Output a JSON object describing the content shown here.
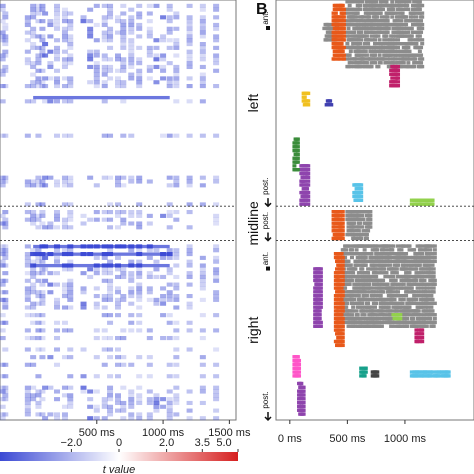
{
  "chart_data": [
    {
      "type": "heatmap",
      "panel": "A",
      "x_unit": "ms",
      "xlim": [
        -230,
        1550
      ],
      "x_ticks": [
        500,
        1000,
        1500
      ],
      "x_tick_labels": [
        "500 ms",
        "1000 ms",
        "1500 ms"
      ],
      "colorbar": {
        "label": "t value",
        "min": -5.0,
        "max": 5.0,
        "ticks": [
          -2.0,
          0,
          2.0,
          3.5,
          5.0
        ],
        "tick_labels": [
          "−2.0",
          "0",
          "2.0",
          "3.5",
          "5.0"
        ],
        "colors": {
          "negative": "#3b49d4",
          "zero": "#ffffff",
          "positive": "#d62020"
        }
      },
      "channel_count": 110,
      "dashed_rows": [
        54,
        63
      ],
      "active_time_columns_ms": [
        -210,
        -190,
        -20,
        20,
        60,
        90,
        110,
        150,
        200,
        260,
        300,
        400,
        450,
        500,
        560,
        600,
        660,
        700,
        760,
        820,
        900,
        950,
        1000,
        1050,
        1100,
        1200,
        1300,
        1400
      ],
      "strong_time_columns_ms": [
        110,
        150,
        400,
        450,
        950,
        1000
      ],
      "active_rows": [
        1,
        2,
        3,
        4,
        5,
        6,
        7,
        8,
        9,
        10,
        11,
        12,
        13,
        14,
        15,
        16,
        17,
        18,
        19,
        20,
        21,
        22,
        26,
        35,
        46,
        47,
        48,
        53,
        55,
        56,
        57,
        58,
        59,
        64,
        65,
        66,
        67,
        68,
        69,
        70,
        71,
        72,
        73,
        74,
        75,
        76,
        77,
        78,
        79,
        80,
        82,
        84,
        86,
        88,
        91,
        93,
        95,
        98,
        101,
        102,
        103,
        104,
        105,
        106,
        107,
        108,
        109
      ],
      "strong_band_rows": [
        25,
        64,
        66,
        69
      ],
      "strong_band_range_ms": [
        20,
        1050
      ],
      "peak_t": -2.6
    },
    {
      "type": "scatter",
      "panel": "B",
      "x_unit": "ms",
      "xlim": [
        -120,
        1600
      ],
      "x_ticks": [
        0,
        500,
        1000
      ],
      "x_tick_labels": [
        "0 ms",
        "500 ms",
        "1000 ms"
      ],
      "channel_count": 110,
      "dashed_rows": [
        54,
        63
      ],
      "regions": [
        {
          "label": "left",
          "ant": "ant.",
          "post": "post.",
          "row_range": [
            0,
            54
          ]
        },
        {
          "label": "midline",
          "ant": "",
          "post": "post.",
          "row_range": [
            54,
            63
          ]
        },
        {
          "label": "right",
          "ant": "ant.",
          "post": "post.",
          "row_range": [
            63,
            110
          ]
        }
      ],
      "gray_clusters": [
        {
          "ms": [
            500,
            1150
          ],
          "rows": [
            0,
            17
          ]
        },
        {
          "ms": [
            500,
            700
          ],
          "rows": [
            55,
            62
          ]
        },
        {
          "ms": [
            460,
            1260
          ],
          "rows": [
            64,
            85
          ]
        },
        {
          "ms": [
            300,
            420
          ],
          "rows": [
            6,
            10
          ]
        }
      ],
      "colored_clusters": [
        {
          "color": "#e8591a",
          "ms": [
            380,
            470
          ],
          "rows": [
            1,
            15
          ]
        },
        {
          "color": "#e8591a",
          "ms": [
            380,
            460
          ],
          "rows": [
            55,
            62
          ]
        },
        {
          "color": "#e8591a",
          "ms": [
            400,
            460
          ],
          "rows": [
            66,
            90
          ]
        },
        {
          "color": "#8e44ad",
          "ms": [
            100,
            160
          ],
          "rows": [
            43,
            53
          ]
        },
        {
          "color": "#8e44ad",
          "ms": [
            220,
            270
          ],
          "rows": [
            70,
            85
          ]
        },
        {
          "color": "#8e44ad",
          "ms": [
            80,
            120
          ],
          "rows": [
            100,
            108
          ]
        },
        {
          "color": "#3a8c3a",
          "ms": [
            40,
            70
          ],
          "rows": [
            36,
            44
          ]
        },
        {
          "color": "#c0206a",
          "ms": [
            880,
            940
          ],
          "rows": [
            17,
            22
          ]
        },
        {
          "color": "#c0206a",
          "ms": [
            1100,
            1150
          ],
          "rows": [
            86,
            89
          ]
        },
        {
          "color": "#ff55c8",
          "ms": [
            40,
            80
          ],
          "rows": [
            93,
            98
          ]
        },
        {
          "color": "#58c3e8",
          "ms": [
            1060,
            1380
          ],
          "rows": [
            97,
            98
          ]
        },
        {
          "color": "#58c3e8",
          "ms": [
            560,
            620
          ],
          "rows": [
            48,
            52
          ]
        },
        {
          "color": "#92d14c",
          "ms": [
            1060,
            1240
          ],
          "rows": [
            52,
            53
          ]
        },
        {
          "color": "#92d14c",
          "ms": [
            900,
            960
          ],
          "rows": [
            82,
            83
          ]
        },
        {
          "color": "#f0c020",
          "ms": [
            120,
            160
          ],
          "rows": [
            24,
            27
          ]
        },
        {
          "color": "#4040b0",
          "ms": [
            320,
            360
          ],
          "rows": [
            26,
            27
          ]
        },
        {
          "color": "#16a08a",
          "ms": [
            620,
            660
          ],
          "rows": [
            96,
            98
          ]
        },
        {
          "color": "#444444",
          "ms": [
            720,
            760
          ],
          "rows": [
            97,
            98
          ]
        }
      ]
    }
  ],
  "panels": {
    "a_label": "",
    "b_label": "B"
  }
}
